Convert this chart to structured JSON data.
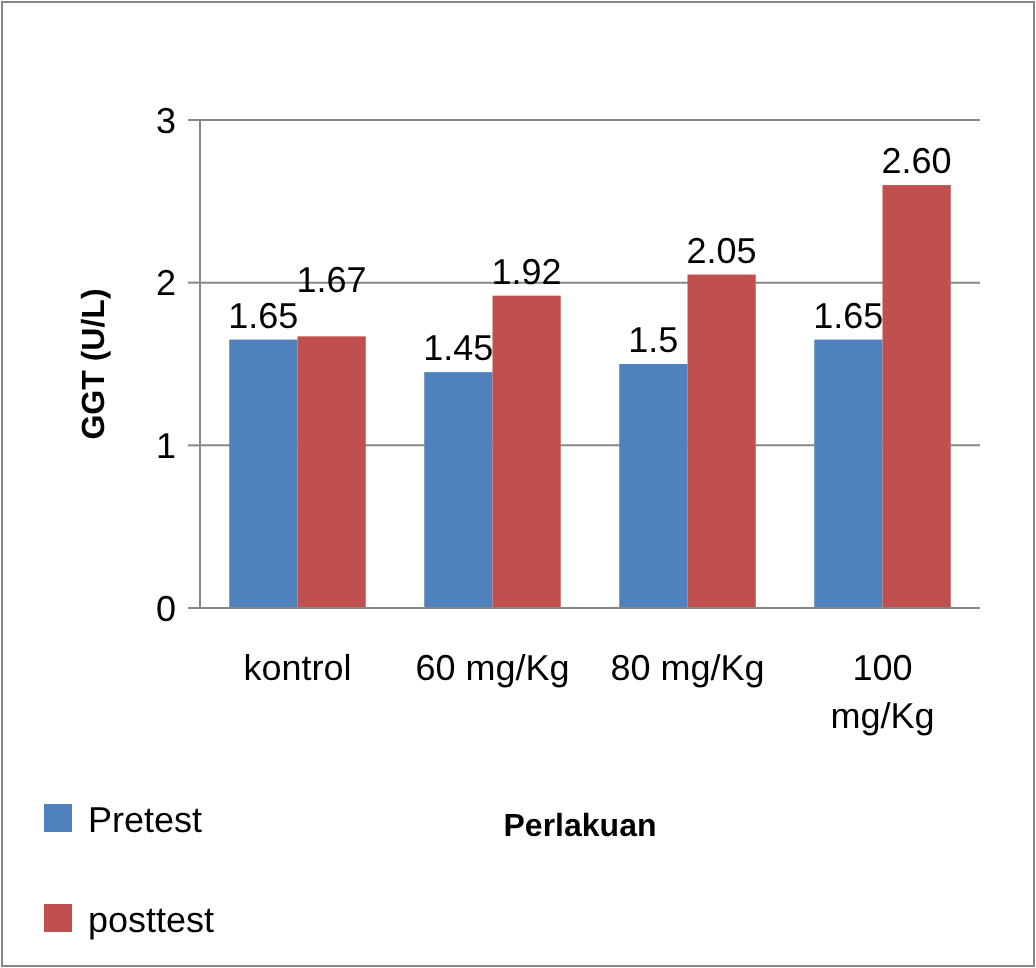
{
  "chart_data": {
    "type": "bar",
    "ylabel": "GGT (U/L)",
    "xlabel": "Perlakuan",
    "categories": [
      "kontrol",
      "60 mg/Kg",
      "80 mg/Kg",
      "100 mg/Kg"
    ],
    "series": [
      {
        "name": "Pretest",
        "color": "#4f81bd",
        "values": [
          1.65,
          1.45,
          1.5,
          1.65
        ],
        "value_labels": [
          "1.65",
          "1.45",
          "1.5",
          "1.65"
        ]
      },
      {
        "name": "posttest",
        "color": "#c0504d",
        "values": [
          1.67,
          1.92,
          2.05,
          2.6
        ],
        "value_labels": [
          "1.67",
          "1.92",
          "2.05",
          "2.60"
        ]
      }
    ],
    "ylim": [
      0,
      3
    ],
    "yticks": [
      0,
      1,
      2,
      3
    ],
    "grid": "y",
    "legend": "bottom left"
  }
}
